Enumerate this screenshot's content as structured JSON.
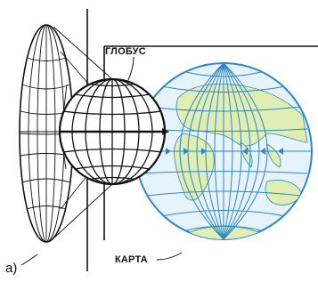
{
  "labels": {
    "globe": "ГЛОБУС",
    "map": "КАРТА",
    "figure": "а)"
  },
  "colors": {
    "ink": "#111111",
    "map_grid": "#2f86c8",
    "map_ocean": "#e6f3fb",
    "land": "#dfeeb2"
  }
}
